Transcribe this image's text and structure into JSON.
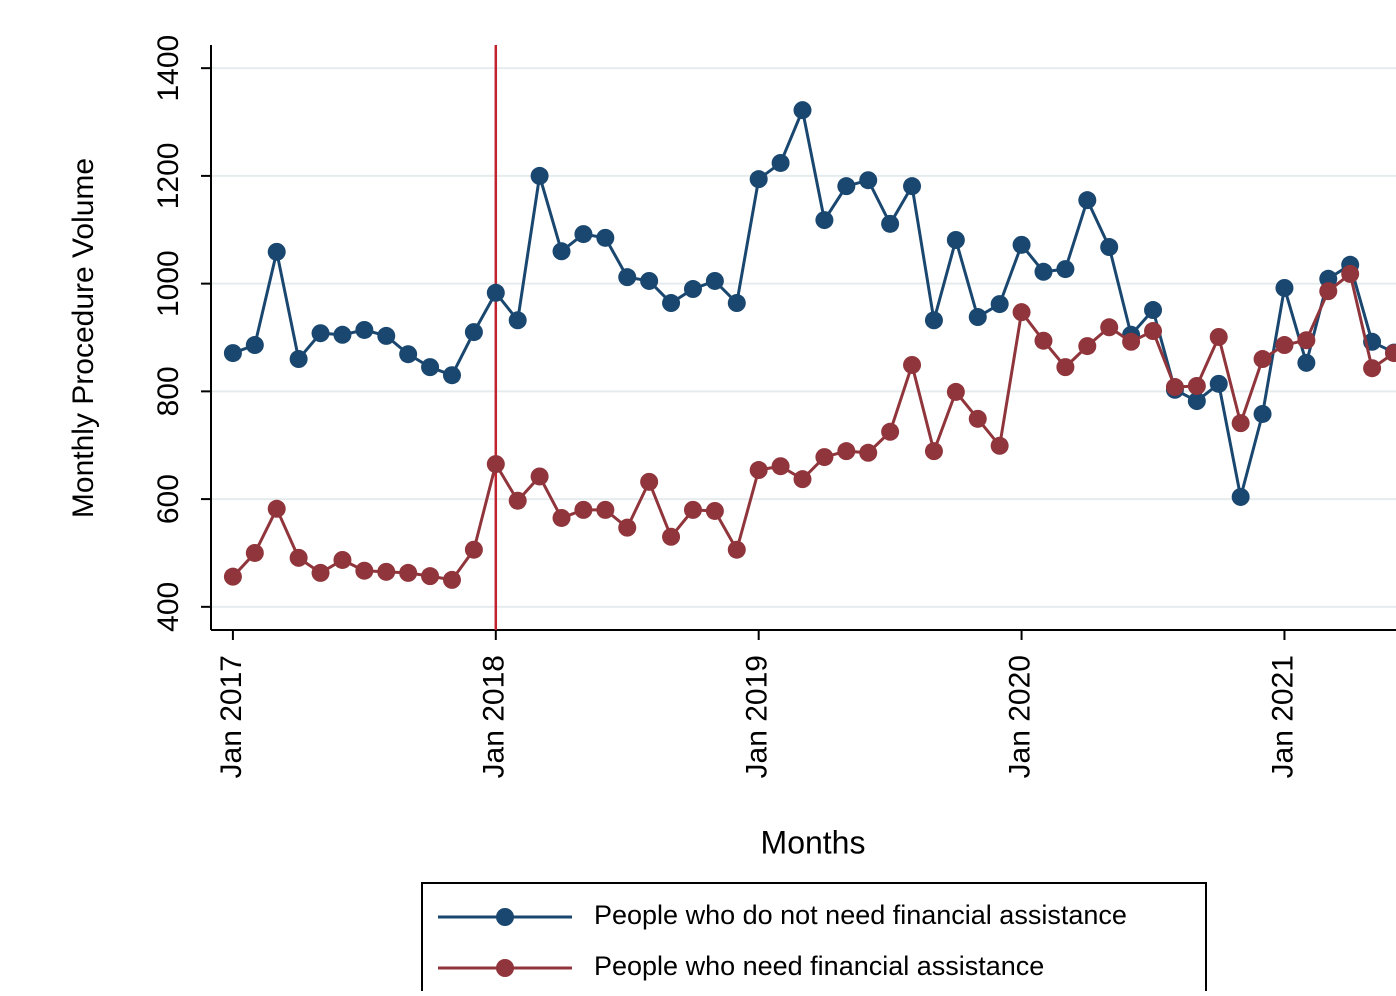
{
  "chart_data": {
    "type": "line",
    "ylabel": "Monthly Procedure Volume",
    "xlabel": "Months",
    "x": [
      "2017-01",
      "2017-02",
      "2017-03",
      "2017-04",
      "2017-05",
      "2017-06",
      "2017-07",
      "2017-08",
      "2017-09",
      "2017-10",
      "2017-11",
      "2017-12",
      "2018-01",
      "2018-02",
      "2018-03",
      "2018-04",
      "2018-05",
      "2018-06",
      "2018-07",
      "2018-08",
      "2018-09",
      "2018-10",
      "2018-11",
      "2018-12",
      "2019-01",
      "2019-02",
      "2019-03",
      "2019-04",
      "2019-05",
      "2019-06",
      "2019-07",
      "2019-08",
      "2019-09",
      "2019-10",
      "2019-11",
      "2019-12",
      "2020-01",
      "2020-02",
      "2020-03",
      "2020-04",
      "2020-05",
      "2020-06",
      "2020-07",
      "2020-08",
      "2020-09",
      "2020-10",
      "2020-11",
      "2020-12",
      "2021-01",
      "2021-02",
      "2021-03",
      "2021-04",
      "2021-05",
      "2021-06"
    ],
    "series": [
      {
        "name": "People who do not need financial assistance",
        "color": "#1a476f",
        "values": [
          871,
          886,
          1059,
          860,
          908,
          905,
          914,
          903,
          869,
          845,
          830,
          910,
          983,
          932,
          1200,
          1060,
          1092,
          1085,
          1012,
          1005,
          964,
          990,
          1005,
          964,
          1194,
          1224,
          1322,
          1118,
          1181,
          1192,
          1111,
          1181,
          932,
          1081,
          938,
          962,
          1072,
          1022,
          1027,
          1155,
          1068,
          905,
          951,
          803,
          782,
          814,
          604,
          758,
          992,
          853,
          1009,
          1035,
          892,
          872
        ]
      },
      {
        "name": "People who need financial assistance",
        "color": "#90353b",
        "values": [
          456,
          500,
          582,
          491,
          463,
          487,
          467,
          465,
          463,
          457,
          450,
          506,
          665,
          597,
          642,
          565,
          580,
          580,
          547,
          632,
          530,
          580,
          578,
          506,
          654,
          661,
          637,
          678,
          689,
          686,
          725,
          849,
          689,
          799,
          749,
          699,
          947,
          894,
          845,
          884,
          919,
          892,
          912,
          808,
          810,
          901,
          741,
          860,
          886,
          895,
          986,
          1018,
          843,
          871
        ]
      }
    ],
    "xlim": [
      "2016-12",
      "2021-06"
    ],
    "xticks": [
      {
        "value": "2017-01",
        "label": "Jan 2017"
      },
      {
        "value": "2018-01",
        "label": "Jan 2018"
      },
      {
        "value": "2019-01",
        "label": "Jan 2019"
      },
      {
        "value": "2020-01",
        "label": "Jan 2020"
      },
      {
        "value": "2021-01",
        "label": "Jan 2021"
      }
    ],
    "ylim": [
      357,
      1443
    ],
    "yticks": [
      400,
      600,
      800,
      1000,
      1200,
      1400
    ],
    "grid": true,
    "vline": {
      "x": "2018-01",
      "color": "#c0222e"
    },
    "legend": "bottom"
  }
}
